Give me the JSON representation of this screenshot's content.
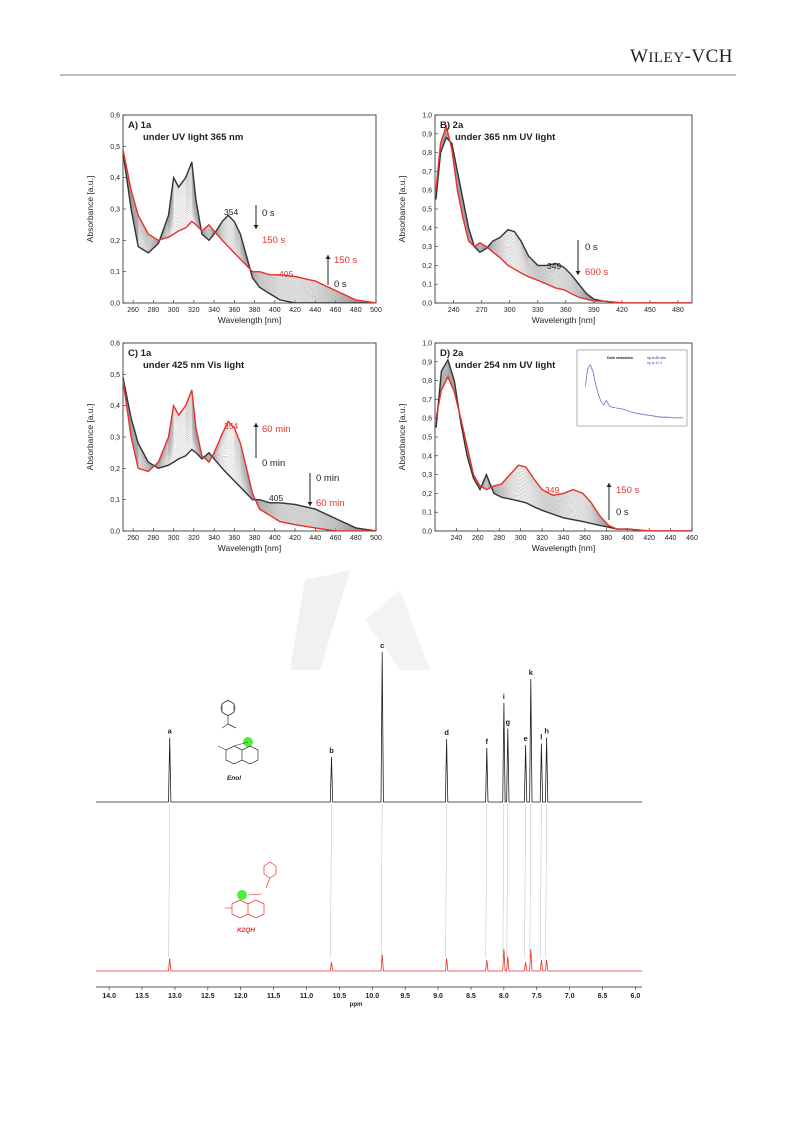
{
  "header": {
    "publisher": "WILEY-VCH"
  },
  "colors": {
    "initial": "#333333",
    "final": "#e8312c",
    "intermediate": "#9a9a9a",
    "highlight": "#4cf03a"
  },
  "uv_panels": [
    {
      "id": "A",
      "label": "A) 1a",
      "subtitle": "under UV light 365 nm",
      "xlabel": "Wavelength [nm]",
      "ylabel": "Absorbance [a.u.]",
      "xlim": [
        250,
        500
      ],
      "ylim": [
        0,
        0.6
      ],
      "xticks": [
        "260",
        "280",
        "300",
        "320",
        "340",
        "360",
        "380",
        "400",
        "420",
        "440",
        "460",
        "480",
        "500"
      ],
      "yticks": [
        "0,0",
        "0,1",
        "0,2",
        "0,3",
        "0,4",
        "0,5",
        "0,6"
      ],
      "annotations": [
        {
          "text": "354",
          "color": "dark"
        },
        {
          "text": "0 s",
          "color": "dark"
        },
        {
          "text": "150 s",
          "color": "red"
        },
        {
          "text": "405",
          "color": "red"
        },
        {
          "text": "150 s",
          "color": "red"
        },
        {
          "text": "0 s",
          "color": "dark"
        }
      ]
    },
    {
      "id": "B",
      "label": "B) 2a",
      "subtitle": "under 365 nm UV light",
      "xlabel": "Wavelength [nm]",
      "ylabel": "Absorbance [a.u.]",
      "xlim": [
        220,
        495
      ],
      "ylim": [
        0,
        1.0
      ],
      "xticks": [
        "240",
        "270",
        "300",
        "330",
        "360",
        "390",
        "420",
        "450",
        "480"
      ],
      "yticks": [
        "0,0",
        "0,1",
        "0,2",
        "0,3",
        "0,4",
        "0,5",
        "0,6",
        "0,7",
        "0,8",
        "0,9",
        "1,0"
      ],
      "annotations": [
        {
          "text": "0 s",
          "color": "dark"
        },
        {
          "text": "349",
          "color": "dark"
        },
        {
          "text": "600 s",
          "color": "red"
        }
      ]
    },
    {
      "id": "C",
      "label": "C) 1a",
      "subtitle": "under 425 nm Vis light",
      "xlabel": "Wavelength [nm]",
      "ylabel": "Absorbance [a.u.]",
      "xlim": [
        250,
        500
      ],
      "ylim": [
        0,
        0.6
      ],
      "xticks": [
        "260",
        "280",
        "300",
        "320",
        "340",
        "360",
        "380",
        "400",
        "420",
        "440",
        "460",
        "480",
        "500"
      ],
      "yticks": [
        "0,0",
        "0,1",
        "0,2",
        "0,3",
        "0,4",
        "0,5",
        "0,6"
      ],
      "annotations": [
        {
          "text": "354",
          "color": "red"
        },
        {
          "text": "60 min",
          "color": "red"
        },
        {
          "text": "0 min",
          "color": "dark"
        },
        {
          "text": "0 min",
          "color": "dark"
        },
        {
          "text": "405",
          "color": "dark"
        },
        {
          "text": "60 min",
          "color": "red"
        }
      ]
    },
    {
      "id": "D",
      "label": "D) 2a",
      "subtitle": "under 254 nm UV light",
      "xlabel": "Wavelength [nm]",
      "ylabel": "Absorbance [a.u.]",
      "xlim": [
        220,
        460
      ],
      "ylim": [
        0,
        1.0
      ],
      "xticks": [
        "240",
        "260",
        "280",
        "300",
        "320",
        "340",
        "360",
        "380",
        "400",
        "420",
        "440",
        "460"
      ],
      "yticks": [
        "0,0",
        "0,1",
        "0,2",
        "0,3",
        "0,4",
        "0,5",
        "0,6",
        "0,7",
        "0,8",
        "0,9",
        "1,0"
      ],
      "annotations": [
        {
          "text": "349",
          "color": "red"
        },
        {
          "text": "150 s",
          "color": "red"
        },
        {
          "text": "0 s",
          "color": "dark"
        }
      ],
      "inset": {
        "title": "Dark relaxation",
        "legend": [
          "up to 60 min",
          "up to 12 h"
        ]
      }
    }
  ],
  "chart_data": [
    {
      "type": "line",
      "panel": "A",
      "title": "A) 1a under UV light 365 nm",
      "xlabel": "Wavelength [nm]",
      "ylabel": "Absorbance [a.u.]",
      "xlim": [
        250,
        500
      ],
      "ylim": [
        0,
        0.6
      ],
      "series": [
        {
          "name": "0 s",
          "x": [
            250,
            258,
            265,
            275,
            285,
            295,
            300,
            305,
            312,
            318,
            322,
            328,
            335,
            340,
            348,
            354,
            360,
            366,
            372,
            378,
            385,
            395,
            405,
            420,
            440,
            460,
            480,
            500
          ],
          "y": [
            0.48,
            0.3,
            0.18,
            0.16,
            0.19,
            0.28,
            0.4,
            0.37,
            0.4,
            0.45,
            0.33,
            0.22,
            0.2,
            0.22,
            0.26,
            0.28,
            0.26,
            0.22,
            0.15,
            0.08,
            0.05,
            0.03,
            0.01,
            0.0,
            0.0,
            0.0,
            0.0,
            0.0
          ]
        },
        {
          "name": "150 s",
          "x": [
            250,
            258,
            265,
            275,
            285,
            295,
            300,
            305,
            312,
            318,
            322,
            328,
            335,
            340,
            348,
            354,
            360,
            366,
            372,
            378,
            385,
            395,
            405,
            420,
            440,
            460,
            480,
            500
          ],
          "y": [
            0.49,
            0.36,
            0.28,
            0.22,
            0.2,
            0.21,
            0.22,
            0.23,
            0.24,
            0.26,
            0.25,
            0.23,
            0.25,
            0.23,
            0.2,
            0.18,
            0.16,
            0.14,
            0.12,
            0.1,
            0.1,
            0.09,
            0.09,
            0.085,
            0.07,
            0.04,
            0.01,
            0.0
          ]
        }
      ]
    },
    {
      "type": "line",
      "panel": "B",
      "title": "B) 2a under 365 nm UV light",
      "xlabel": "Wavelength [nm]",
      "ylabel": "Absorbance [a.u.]",
      "xlim": [
        220,
        495
      ],
      "ylim": [
        0,
        1.0
      ],
      "series": [
        {
          "name": "0 s",
          "x": [
            221,
            226,
            232,
            238,
            244,
            250,
            256,
            262,
            268,
            275,
            282,
            290,
            298,
            305,
            312,
            320,
            330,
            340,
            349,
            358,
            366,
            374,
            382,
            390,
            400,
            420,
            450,
            495
          ],
          "y": [
            0.55,
            0.8,
            0.88,
            0.85,
            0.7,
            0.55,
            0.4,
            0.3,
            0.27,
            0.29,
            0.33,
            0.35,
            0.39,
            0.38,
            0.33,
            0.25,
            0.2,
            0.2,
            0.21,
            0.19,
            0.15,
            0.1,
            0.05,
            0.02,
            0.01,
            0.0,
            0.0,
            0.0
          ]
        },
        {
          "name": "600 s",
          "x": [
            221,
            226,
            232,
            238,
            244,
            250,
            256,
            262,
            268,
            275,
            282,
            290,
            298,
            305,
            312,
            320,
            330,
            340,
            349,
            358,
            366,
            374,
            382,
            390,
            400,
            420,
            450,
            495
          ],
          "y": [
            0.6,
            0.85,
            0.94,
            0.82,
            0.6,
            0.45,
            0.33,
            0.3,
            0.32,
            0.3,
            0.27,
            0.24,
            0.2,
            0.18,
            0.16,
            0.14,
            0.12,
            0.1,
            0.08,
            0.07,
            0.05,
            0.03,
            0.02,
            0.01,
            0.01,
            0.0,
            0.0,
            0.0
          ]
        }
      ]
    },
    {
      "type": "line",
      "panel": "C",
      "title": "C) 1a under 425 nm Vis light",
      "xlabel": "Wavelength [nm]",
      "ylabel": "Absorbance [a.u.]",
      "xlim": [
        250,
        500
      ],
      "ylim": [
        0,
        0.6
      ],
      "series": [
        {
          "name": "0 min",
          "x": [
            250,
            258,
            265,
            275,
            285,
            295,
            300,
            305,
            312,
            318,
            322,
            328,
            335,
            340,
            348,
            354,
            360,
            366,
            372,
            378,
            385,
            395,
            405,
            420,
            440,
            460,
            480,
            500
          ],
          "y": [
            0.49,
            0.36,
            0.28,
            0.22,
            0.2,
            0.21,
            0.22,
            0.23,
            0.24,
            0.26,
            0.25,
            0.23,
            0.25,
            0.23,
            0.2,
            0.18,
            0.16,
            0.14,
            0.12,
            0.1,
            0.1,
            0.09,
            0.09,
            0.085,
            0.07,
            0.04,
            0.01,
            0.0
          ]
        },
        {
          "name": "60 min",
          "x": [
            250,
            258,
            265,
            275,
            285,
            295,
            300,
            305,
            312,
            318,
            322,
            328,
            335,
            340,
            348,
            354,
            360,
            366,
            372,
            378,
            385,
            395,
            405,
            420,
            440,
            460,
            480,
            500
          ],
          "y": [
            0.48,
            0.3,
            0.2,
            0.19,
            0.22,
            0.3,
            0.4,
            0.37,
            0.4,
            0.45,
            0.33,
            0.24,
            0.22,
            0.25,
            0.31,
            0.35,
            0.33,
            0.28,
            0.2,
            0.12,
            0.07,
            0.05,
            0.03,
            0.02,
            0.01,
            0.0,
            0.0,
            0.0
          ]
        }
      ]
    },
    {
      "type": "line",
      "panel": "D",
      "title": "D) 2a under 254 nm UV light",
      "xlabel": "Wavelength [nm]",
      "ylabel": "Absorbance [a.u.]",
      "xlim": [
        220,
        460
      ],
      "ylim": [
        0,
        1.0
      ],
      "series": [
        {
          "name": "0 s",
          "x": [
            221,
            226,
            232,
            238,
            244,
            250,
            256,
            262,
            268,
            275,
            282,
            290,
            298,
            305,
            312,
            320,
            330,
            340,
            349,
            358,
            366,
            374,
            382,
            390,
            400,
            420,
            440,
            460
          ],
          "y": [
            0.55,
            0.85,
            0.91,
            0.8,
            0.58,
            0.4,
            0.28,
            0.22,
            0.3,
            0.2,
            0.18,
            0.17,
            0.16,
            0.15,
            0.13,
            0.11,
            0.09,
            0.07,
            0.06,
            0.05,
            0.04,
            0.03,
            0.02,
            0.01,
            0.01,
            0.0,
            0.0,
            0.0
          ]
        },
        {
          "name": "150 s",
          "x": [
            221,
            226,
            232,
            238,
            244,
            250,
            256,
            262,
            268,
            275,
            282,
            290,
            298,
            305,
            312,
            320,
            330,
            340,
            349,
            358,
            366,
            374,
            382,
            390,
            400,
            420,
            440,
            460
          ],
          "y": [
            0.6,
            0.75,
            0.82,
            0.74,
            0.6,
            0.45,
            0.3,
            0.24,
            0.22,
            0.24,
            0.25,
            0.3,
            0.35,
            0.34,
            0.28,
            0.22,
            0.19,
            0.2,
            0.22,
            0.2,
            0.15,
            0.08,
            0.03,
            0.01,
            0.01,
            0.0,
            0.0,
            0.0
          ]
        }
      ]
    },
    {
      "type": "line",
      "panel": "NMR",
      "title": "",
      "xlabel": "ppm",
      "ylabel": "",
      "xlim": [
        14.2,
        5.9
      ],
      "xticks": [
        "14.0",
        "13.5",
        "13.0",
        "12.5",
        "12.0",
        "11.5",
        "11.0",
        "10.5",
        "10.0",
        "9.5",
        "9.0",
        "8.5",
        "8.0",
        "7.5",
        "7.0",
        "6.5",
        "6.0"
      ],
      "peaks": [
        {
          "label": "a",
          "ppm": 13.08,
          "height_top": 0.43,
          "height_bottom": 0.07
        },
        {
          "label": "b",
          "ppm": 10.62,
          "height_top": 0.3,
          "height_bottom": 0.05
        },
        {
          "label": "c",
          "ppm": 9.85,
          "height_top": 1.0,
          "height_bottom": 0.09
        },
        {
          "label": "d",
          "ppm": 8.87,
          "height_top": 0.42,
          "height_bottom": 0.07
        },
        {
          "label": "f",
          "ppm": 8.26,
          "height_top": 0.36,
          "height_bottom": 0.06
        },
        {
          "label": "i",
          "ppm": 8.0,
          "height_top": 0.66,
          "height_bottom": 0.12
        },
        {
          "label": "g",
          "ppm": 7.94,
          "height_top": 0.49,
          "height_bottom": 0.08
        },
        {
          "label": "e",
          "ppm": 7.67,
          "height_top": 0.38,
          "height_bottom": 0.05
        },
        {
          "label": "k",
          "ppm": 7.59,
          "height_top": 0.82,
          "height_bottom": 0.12
        },
        {
          "label": "l",
          "ppm": 7.43,
          "height_top": 0.39,
          "height_bottom": 0.06
        },
        {
          "label": "h",
          "ppm": 7.35,
          "height_top": 0.43,
          "height_bottom": 0.06
        }
      ],
      "structures": [
        {
          "name": "Enol",
          "color": "dark"
        },
        {
          "name": "K2QH",
          "color": "red"
        }
      ]
    }
  ]
}
